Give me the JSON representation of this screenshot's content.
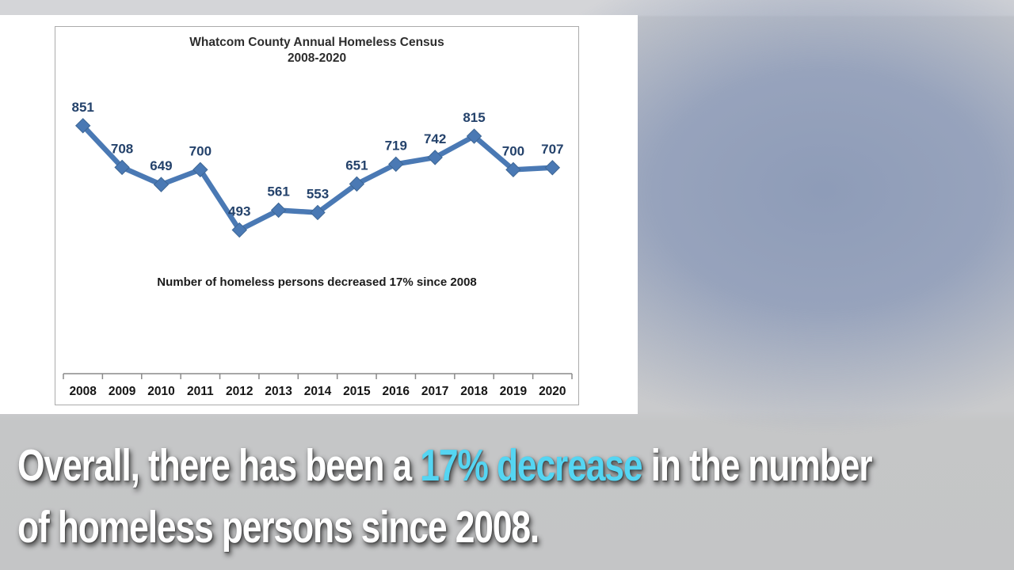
{
  "chart_data": {
    "type": "line",
    "title": "Whatcom County Annual Homeless Census",
    "subtitle": "2008-2020",
    "categories": [
      "2008",
      "2009",
      "2010",
      "2011",
      "2012",
      "2013",
      "2014",
      "2015",
      "2016",
      "2017",
      "2018",
      "2019",
      "2020"
    ],
    "values": [
      851,
      708,
      649,
      700,
      493,
      561,
      553,
      651,
      719,
      742,
      815,
      700,
      707
    ],
    "annotation": "Number of homeless persons decreased 17% since 2008",
    "xlabel": "",
    "ylabel": "",
    "ylim": [
      0,
      1190
    ],
    "grid": false,
    "legend": false,
    "marker": "diamond"
  },
  "caption": {
    "line1_pre": "Overall, there has been a ",
    "line1_highlight": "17% decrease",
    "line1_post": " in the number",
    "line2": "of homeless persons since 2008."
  },
  "colors": {
    "line": "#4a79b4",
    "marker": "#4a79b4",
    "marker_edge": "#3e6795",
    "data_label": "#24426b",
    "axis": "#8a8a8a",
    "x_label": "#161616",
    "caption_text": "#ffffff",
    "caption_highlight": "#55d5f2"
  }
}
